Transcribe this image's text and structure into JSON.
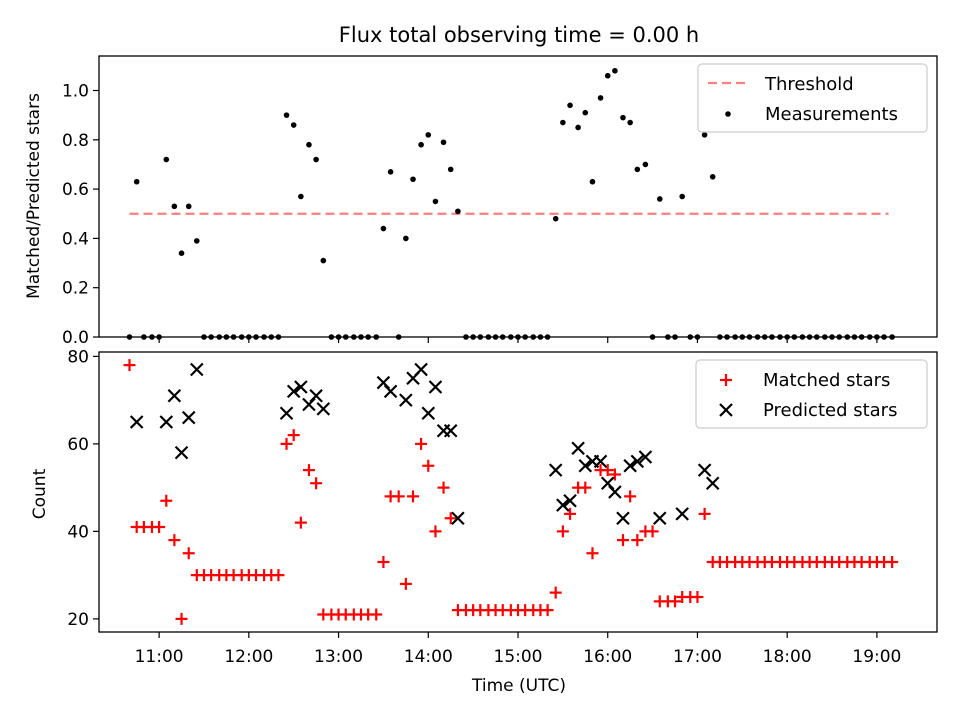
{
  "chart_data": [
    {
      "type": "scatter",
      "title": "Flux total observing time = 0.00 h",
      "ylabel": "Matched/Predicted stars",
      "ylim": [
        0,
        1.14
      ],
      "yticks": [
        0.0,
        0.2,
        0.4,
        0.6,
        0.8,
        1.0
      ],
      "ytick_labels": [
        "0.0",
        "0.2",
        "0.4",
        "0.6",
        "0.8",
        "1.0"
      ],
      "legend_position": "top-right",
      "threshold": {
        "name": "Threshold",
        "value": 0.5,
        "x_range": [
          10.67,
          19.13
        ],
        "color": "#ff8080"
      },
      "series": [
        {
          "name": "Measurements",
          "color": "#000000",
          "marker": "dot",
          "points": [
            [
              10.67,
              0
            ],
            [
              10.75,
              0.63
            ],
            [
              10.83,
              0
            ],
            [
              10.92,
              0
            ],
            [
              11.0,
              0
            ],
            [
              11.08,
              0.72
            ],
            [
              11.17,
              0.53
            ],
            [
              11.25,
              0.34
            ],
            [
              11.33,
              0.53
            ],
            [
              11.42,
              0.39
            ],
            [
              11.5,
              0
            ],
            [
              11.58,
              0
            ],
            [
              11.67,
              0
            ],
            [
              11.75,
              0
            ],
            [
              11.83,
              0
            ],
            [
              11.92,
              0
            ],
            [
              12.0,
              0
            ],
            [
              12.08,
              0
            ],
            [
              12.17,
              0
            ],
            [
              12.25,
              0
            ],
            [
              12.33,
              0
            ],
            [
              12.42,
              0.9
            ],
            [
              12.5,
              0.86
            ],
            [
              12.58,
              0.57
            ],
            [
              12.67,
              0.78
            ],
            [
              12.75,
              0.72
            ],
            [
              12.83,
              0.31
            ],
            [
              12.92,
              0
            ],
            [
              13.0,
              0
            ],
            [
              13.08,
              0
            ],
            [
              13.17,
              0
            ],
            [
              13.25,
              0
            ],
            [
              13.33,
              0
            ],
            [
              13.42,
              0
            ],
            [
              13.5,
              0.44
            ],
            [
              13.58,
              0.67
            ],
            [
              13.67,
              0
            ],
            [
              13.75,
              0.4
            ],
            [
              13.83,
              0.64
            ],
            [
              13.92,
              0.78
            ],
            [
              14.0,
              0.82
            ],
            [
              14.08,
              0.55
            ],
            [
              14.17,
              0.79
            ],
            [
              14.25,
              0.68
            ],
            [
              14.33,
              0.51
            ],
            [
              14.42,
              0
            ],
            [
              14.5,
              0
            ],
            [
              14.58,
              0
            ],
            [
              14.67,
              0
            ],
            [
              14.75,
              0
            ],
            [
              14.83,
              0
            ],
            [
              14.92,
              0
            ],
            [
              15.0,
              0
            ],
            [
              15.08,
              0
            ],
            [
              15.17,
              0
            ],
            [
              15.25,
              0
            ],
            [
              15.33,
              0
            ],
            [
              15.42,
              0.48
            ],
            [
              15.5,
              0.87
            ],
            [
              15.58,
              0.94
            ],
            [
              15.67,
              0.85
            ],
            [
              15.75,
              0.91
            ],
            [
              15.83,
              0.63
            ],
            [
              15.92,
              0.97
            ],
            [
              16.0,
              1.06
            ],
            [
              16.08,
              1.08
            ],
            [
              16.17,
              0.89
            ],
            [
              16.25,
              0.87
            ],
            [
              16.33,
              0.68
            ],
            [
              16.42,
              0.7
            ],
            [
              16.5,
              0
            ],
            [
              16.58,
              0.56
            ],
            [
              16.67,
              0
            ],
            [
              16.75,
              0
            ],
            [
              16.83,
              0.57
            ],
            [
              16.92,
              0
            ],
            [
              17.0,
              0
            ],
            [
              17.08,
              0.82
            ],
            [
              17.17,
              0.65
            ],
            [
              17.25,
              0
            ],
            [
              17.33,
              0
            ],
            [
              17.42,
              0
            ],
            [
              17.5,
              0
            ],
            [
              17.58,
              0
            ],
            [
              17.67,
              0
            ],
            [
              17.75,
              0
            ],
            [
              17.83,
              0
            ],
            [
              17.92,
              0
            ],
            [
              18.0,
              0
            ],
            [
              18.08,
              0
            ],
            [
              18.17,
              0
            ],
            [
              18.25,
              0
            ],
            [
              18.33,
              0
            ],
            [
              18.42,
              0
            ],
            [
              18.5,
              0
            ],
            [
              18.58,
              0
            ],
            [
              18.67,
              0
            ],
            [
              18.75,
              0
            ],
            [
              18.83,
              0
            ],
            [
              18.92,
              0
            ],
            [
              19.0,
              0
            ],
            [
              19.08,
              0
            ],
            [
              19.17,
              0
            ]
          ]
        }
      ]
    },
    {
      "type": "scatter",
      "xlabel": "Time (UTC)",
      "ylabel": "Count",
      "ylim": [
        17,
        81
      ],
      "yticks": [
        20,
        40,
        60,
        80
      ],
      "ytick_labels": [
        "20",
        "40",
        "60",
        "80"
      ],
      "xlim": [
        10.33,
        19.67
      ],
      "xticks": [
        11,
        12,
        13,
        14,
        15,
        16,
        17,
        18,
        19
      ],
      "xtick_labels": [
        "11:00",
        "12:00",
        "13:00",
        "14:00",
        "15:00",
        "16:00",
        "17:00",
        "18:00",
        "19:00"
      ],
      "legend_position": "top-right",
      "series": [
        {
          "name": "Matched stars",
          "color": "#ff0000",
          "marker": "plus",
          "points": [
            [
              10.67,
              78
            ],
            [
              10.75,
              41
            ],
            [
              10.83,
              41
            ],
            [
              10.92,
              41
            ],
            [
              11.0,
              41
            ],
            [
              11.08,
              47
            ],
            [
              11.17,
              38
            ],
            [
              11.25,
              20
            ],
            [
              11.33,
              35
            ],
            [
              11.42,
              30
            ],
            [
              11.5,
              30
            ],
            [
              11.58,
              30
            ],
            [
              11.67,
              30
            ],
            [
              11.75,
              30
            ],
            [
              11.83,
              30
            ],
            [
              11.92,
              30
            ],
            [
              12.0,
              30
            ],
            [
              12.08,
              30
            ],
            [
              12.17,
              30
            ],
            [
              12.25,
              30
            ],
            [
              12.33,
              30
            ],
            [
              12.42,
              60
            ],
            [
              12.5,
              62
            ],
            [
              12.58,
              42
            ],
            [
              12.67,
              54
            ],
            [
              12.75,
              51
            ],
            [
              12.83,
              21
            ],
            [
              12.92,
              21
            ],
            [
              13.0,
              21
            ],
            [
              13.08,
              21
            ],
            [
              13.17,
              21
            ],
            [
              13.25,
              21
            ],
            [
              13.33,
              21
            ],
            [
              13.42,
              21
            ],
            [
              13.5,
              33
            ],
            [
              13.58,
              48
            ],
            [
              13.67,
              48
            ],
            [
              13.75,
              28
            ],
            [
              13.83,
              48
            ],
            [
              13.92,
              60
            ],
            [
              14.0,
              55
            ],
            [
              14.08,
              40
            ],
            [
              14.17,
              50
            ],
            [
              14.25,
              43
            ],
            [
              14.33,
              22
            ],
            [
              14.42,
              22
            ],
            [
              14.5,
              22
            ],
            [
              14.58,
              22
            ],
            [
              14.67,
              22
            ],
            [
              14.75,
              22
            ],
            [
              14.83,
              22
            ],
            [
              14.92,
              22
            ],
            [
              15.0,
              22
            ],
            [
              15.08,
              22
            ],
            [
              15.17,
              22
            ],
            [
              15.25,
              22
            ],
            [
              15.33,
              22
            ],
            [
              15.42,
              26
            ],
            [
              15.5,
              40
            ],
            [
              15.58,
              44
            ],
            [
              15.67,
              50
            ],
            [
              15.75,
              50
            ],
            [
              15.83,
              35
            ],
            [
              15.92,
              54
            ],
            [
              16.0,
              54
            ],
            [
              16.08,
              53
            ],
            [
              16.17,
              38
            ],
            [
              16.25,
              48
            ],
            [
              16.33,
              38
            ],
            [
              16.42,
              40
            ],
            [
              16.5,
              40
            ],
            [
              16.58,
              24
            ],
            [
              16.67,
              24
            ],
            [
              16.75,
              24
            ],
            [
              16.83,
              25
            ],
            [
              16.92,
              25
            ],
            [
              17.0,
              25
            ],
            [
              17.08,
              44
            ],
            [
              17.17,
              33
            ],
            [
              17.25,
              33
            ],
            [
              17.33,
              33
            ],
            [
              17.42,
              33
            ],
            [
              17.5,
              33
            ],
            [
              17.58,
              33
            ],
            [
              17.67,
              33
            ],
            [
              17.75,
              33
            ],
            [
              17.83,
              33
            ],
            [
              17.92,
              33
            ],
            [
              18.0,
              33
            ],
            [
              18.08,
              33
            ],
            [
              18.17,
              33
            ],
            [
              18.25,
              33
            ],
            [
              18.33,
              33
            ],
            [
              18.42,
              33
            ],
            [
              18.5,
              33
            ],
            [
              18.58,
              33
            ],
            [
              18.67,
              33
            ],
            [
              18.75,
              33
            ],
            [
              18.83,
              33
            ],
            [
              18.92,
              33
            ],
            [
              19.0,
              33
            ],
            [
              19.08,
              33
            ],
            [
              19.17,
              33
            ]
          ]
        },
        {
          "name": "Predicted stars",
          "color": "#000000",
          "marker": "x",
          "points": [
            [
              10.75,
              65
            ],
            [
              11.08,
              65
            ],
            [
              11.17,
              71
            ],
            [
              11.25,
              58
            ],
            [
              11.33,
              66
            ],
            [
              11.42,
              77
            ],
            [
              12.42,
              67
            ],
            [
              12.5,
              72
            ],
            [
              12.58,
              73
            ],
            [
              12.67,
              69
            ],
            [
              12.75,
              71
            ],
            [
              12.83,
              68
            ],
            [
              13.5,
              74
            ],
            [
              13.58,
              72
            ],
            [
              13.75,
              70
            ],
            [
              13.83,
              75
            ],
            [
              13.92,
              77
            ],
            [
              14.0,
              67
            ],
            [
              14.08,
              73
            ],
            [
              14.17,
              63
            ],
            [
              14.25,
              63
            ],
            [
              14.33,
              43
            ],
            [
              15.42,
              54
            ],
            [
              15.5,
              46
            ],
            [
              15.58,
              47
            ],
            [
              15.67,
              59
            ],
            [
              15.75,
              55
            ],
            [
              15.83,
              56
            ],
            [
              15.92,
              56
            ],
            [
              16.0,
              51
            ],
            [
              16.08,
              49
            ],
            [
              16.17,
              43
            ],
            [
              16.25,
              55
            ],
            [
              16.33,
              56
            ],
            [
              16.42,
              57
            ],
            [
              16.58,
              43
            ],
            [
              16.83,
              44
            ],
            [
              17.08,
              54
            ],
            [
              17.17,
              51
            ]
          ]
        }
      ]
    }
  ]
}
